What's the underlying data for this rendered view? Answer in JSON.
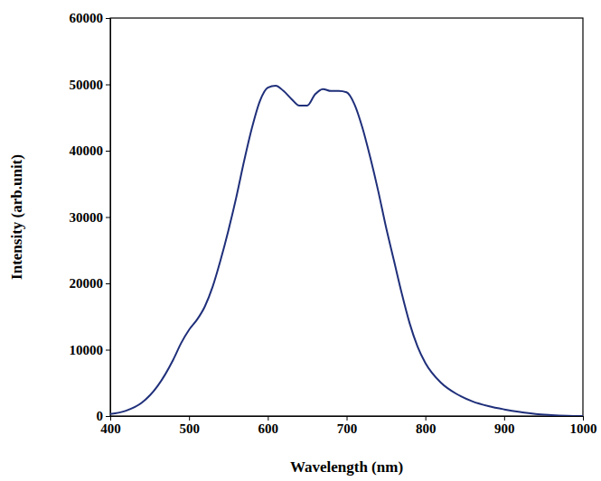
{
  "chart_data": {
    "type": "line",
    "x_label": "Wavelength (nm)",
    "y_label": "Intensity (arb.unit)",
    "color": "#1f2f7a",
    "x": [
      400,
      420,
      440,
      460,
      480,
      490,
      500,
      510,
      520,
      530,
      540,
      550,
      560,
      570,
      580,
      590,
      600,
      610,
      620,
      630,
      640,
      650,
      660,
      670,
      680,
      690,
      700,
      710,
      720,
      730,
      740,
      750,
      760,
      770,
      780,
      790,
      800,
      820,
      840,
      860,
      880,
      900,
      920,
      940,
      960,
      980,
      1000
    ],
    "values": [
      300,
      800,
      2000,
      4500,
      8500,
      11000,
      13000,
      14500,
      16500,
      19500,
      23500,
      28000,
      33000,
      38500,
      43500,
      47500,
      49500,
      49800,
      49000,
      47800,
      46800,
      46800,
      48500,
      49300,
      49000,
      49000,
      48800,
      47000,
      43500,
      39000,
      34000,
      28500,
      23500,
      18500,
      14000,
      10500,
      8000,
      5000,
      3300,
      2200,
      1500,
      1000,
      600,
      300,
      150,
      50,
      0
    ],
    "xlim": [
      400,
      1000
    ],
    "xticks": [
      400,
      500,
      600,
      700,
      800,
      900,
      1000
    ],
    "ylim": [
      0,
      60000
    ],
    "yticks": [
      0,
      10000,
      20000,
      30000,
      40000,
      50000,
      60000
    ],
    "grid": false,
    "line_style": "solid"
  }
}
